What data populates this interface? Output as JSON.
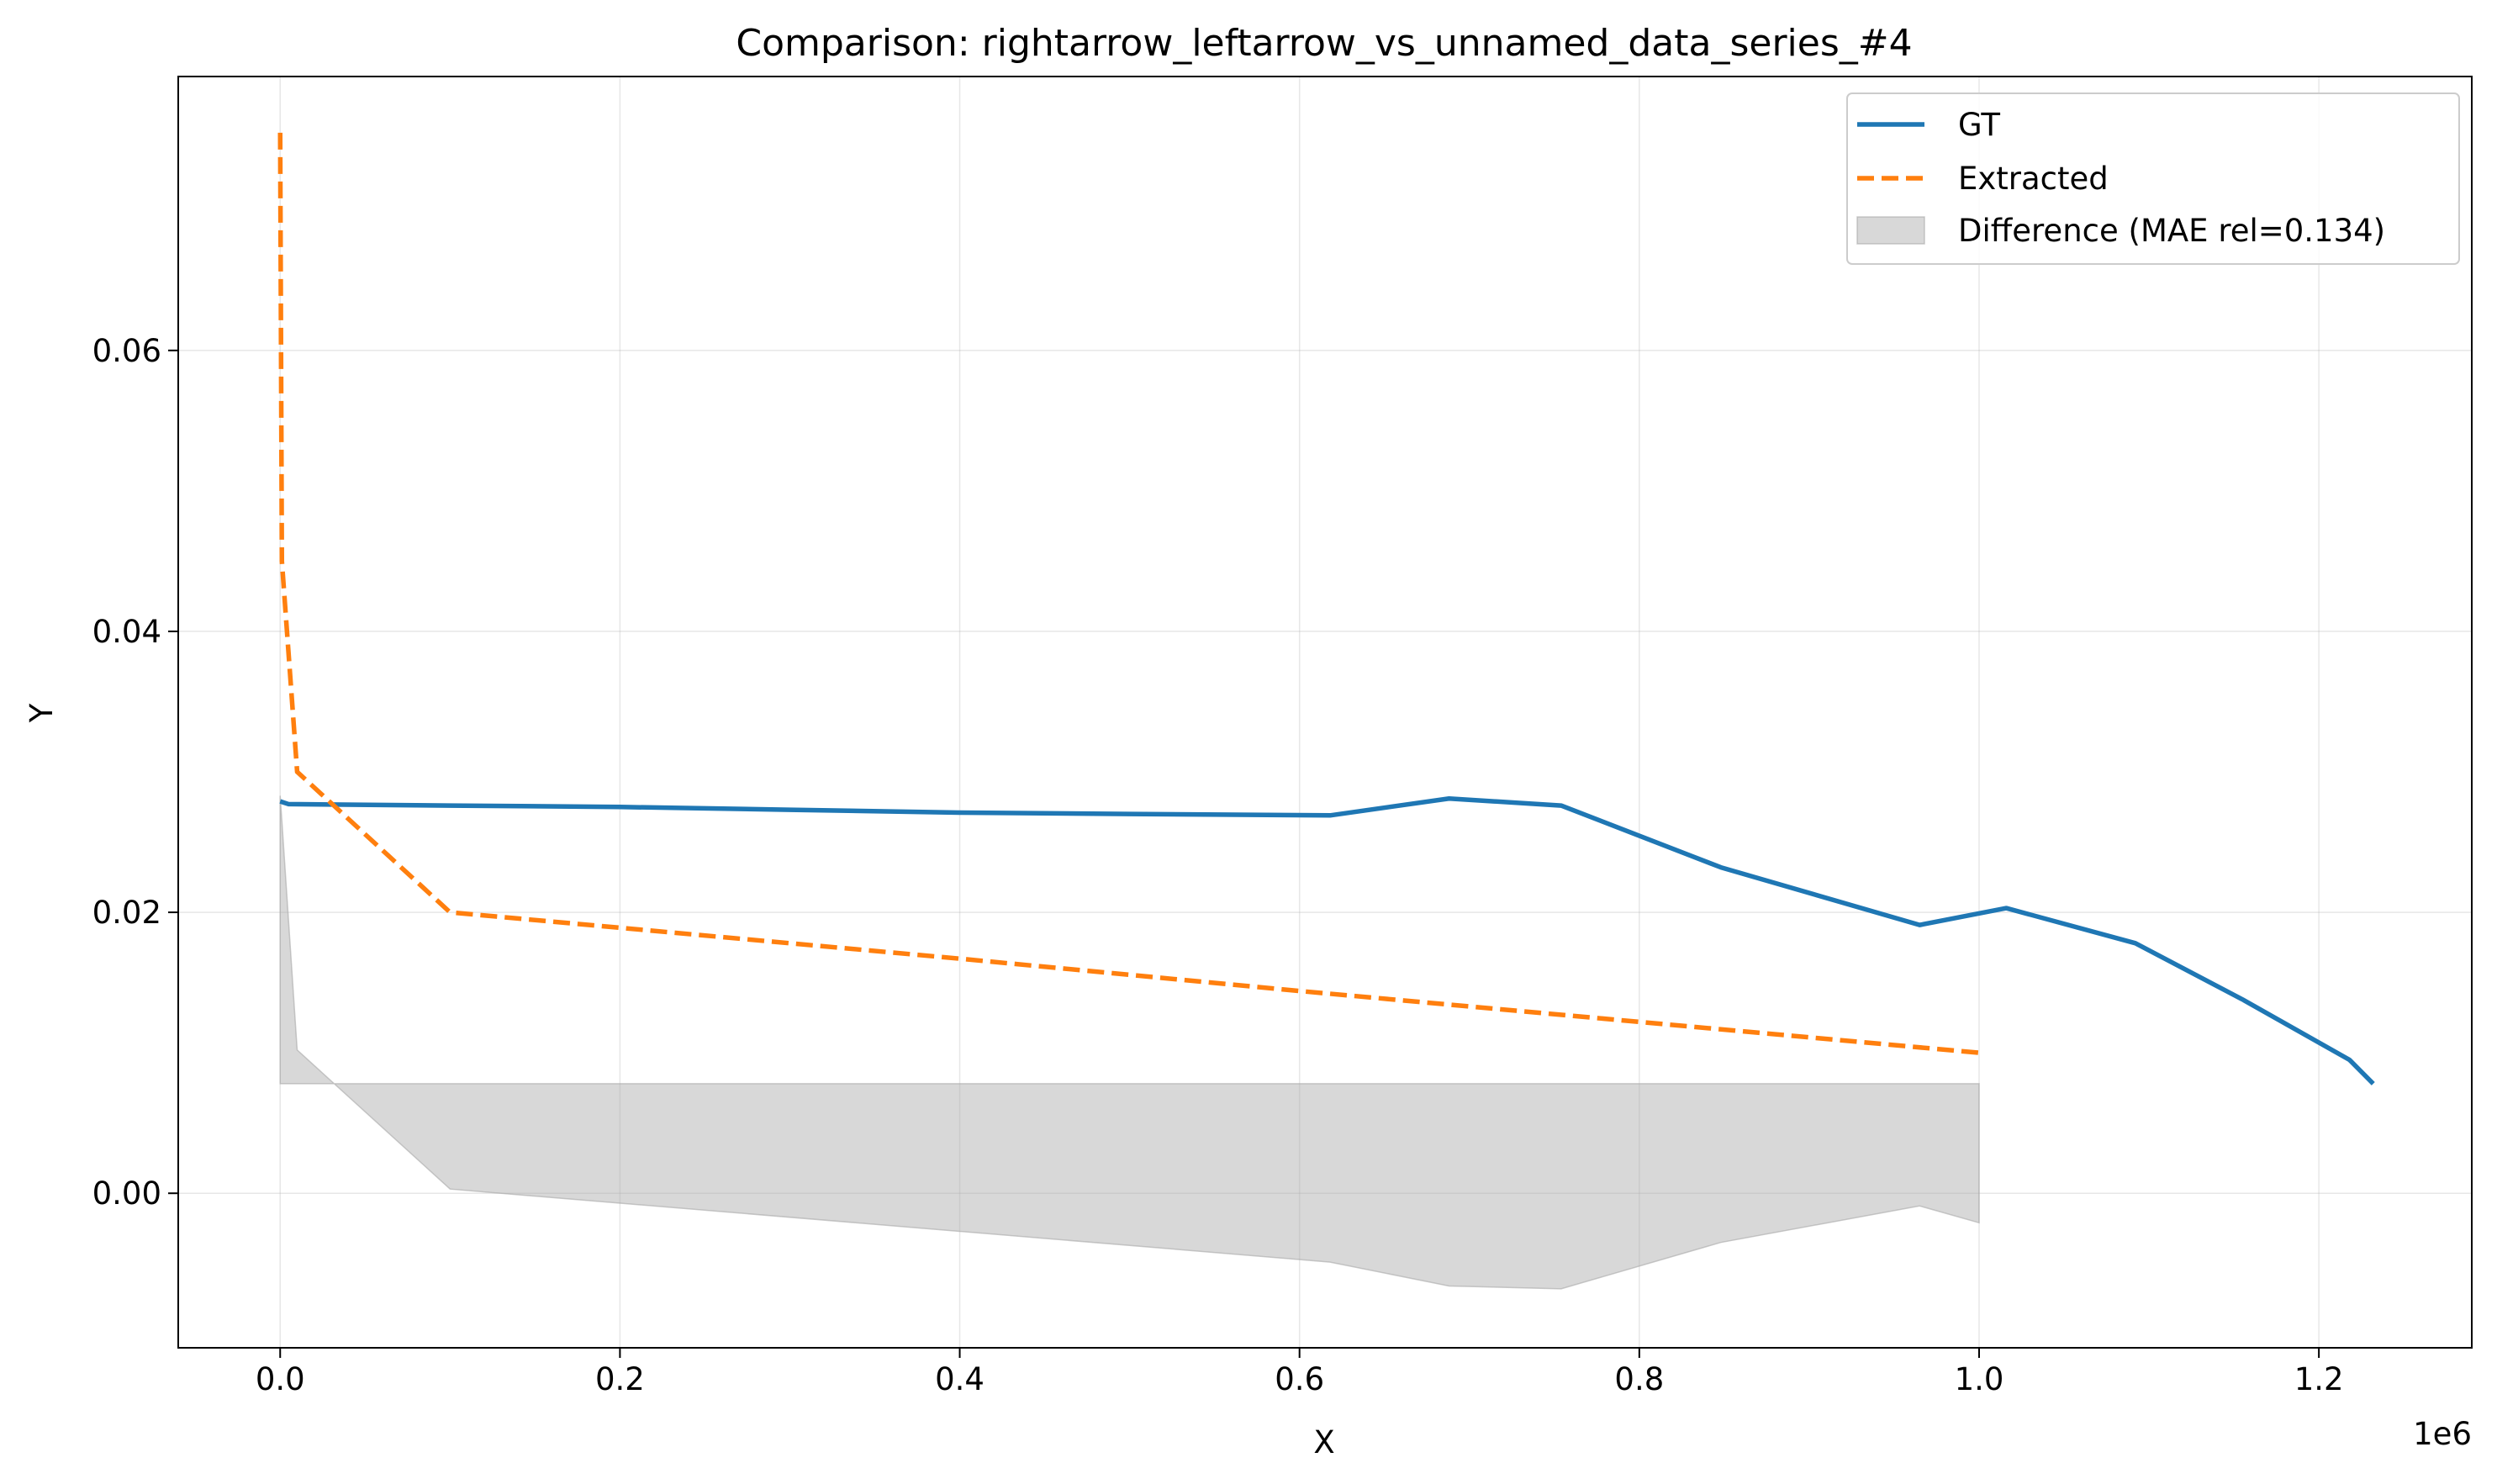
{
  "chart_data": {
    "type": "line",
    "title": "Comparison: rightarrow_leftarrow_vs_unnamed_data_series_#4",
    "xlabel": "X",
    "ylabel": "Y",
    "x_offset_label": "1e6",
    "xlim": [
      -60000,
      1290000
    ],
    "ylim": [
      -0.011,
      0.0795
    ],
    "xticks": [
      0.0,
      0.2,
      0.4,
      0.6,
      0.8,
      1.0,
      1.2
    ],
    "xtick_labels": [
      "0.0",
      "0.2",
      "0.4",
      "0.6",
      "0.8",
      "1.0",
      "1.2"
    ],
    "yticks": [
      0.0,
      0.02,
      0.04,
      0.06
    ],
    "ytick_labels": [
      "0.00",
      "0.02",
      "0.04",
      "0.06"
    ],
    "grid": true,
    "legend_position": "top-right",
    "series": [
      {
        "name": "GT",
        "color": "#1f77b4",
        "style": "solid",
        "x": [
          0,
          5000,
          100000,
          200000,
          300000,
          400000,
          500000,
          618000,
          688000,
          754000,
          848000,
          965000,
          1016000,
          1092000,
          1155000,
          1218000,
          1232000
        ],
        "y": [
          0.0279,
          0.0277,
          0.0276,
          0.0275,
          0.0273,
          0.0271,
          0.027,
          0.0269,
          0.0281,
          0.0276,
          0.0232,
          0.0191,
          0.0203,
          0.0178,
          0.0138,
          0.0095,
          0.0078
        ]
      },
      {
        "name": "Extracted",
        "color": "#ff7f0e",
        "style": "dashed",
        "x": [
          0,
          1000,
          10000,
          100000,
          200000,
          400000,
          600000,
          800000,
          1000000
        ],
        "y": [
          0.0755,
          0.045,
          0.03,
          0.02,
          0.0189,
          0.0167,
          0.0144,
          0.0122,
          0.01
        ]
      },
      {
        "name": "Difference (MAE rel=0.134)",
        "type": "area",
        "color": "#a9a9a9",
        "opacity": 0.45,
        "upper_x": [
          0,
          1000000
        ],
        "upper_y": [
          0.0078,
          0.0078
        ],
        "lower_x": [
          0,
          1000,
          10000,
          100000,
          618000,
          688000,
          754000,
          848000,
          965000,
          1000000
        ],
        "lower_y": [
          0.0283,
          0.0265,
          0.0102,
          0.0003,
          -0.0049,
          -0.0066,
          -0.0068,
          -0.0035,
          -0.0009,
          -0.0021
        ]
      }
    ]
  }
}
